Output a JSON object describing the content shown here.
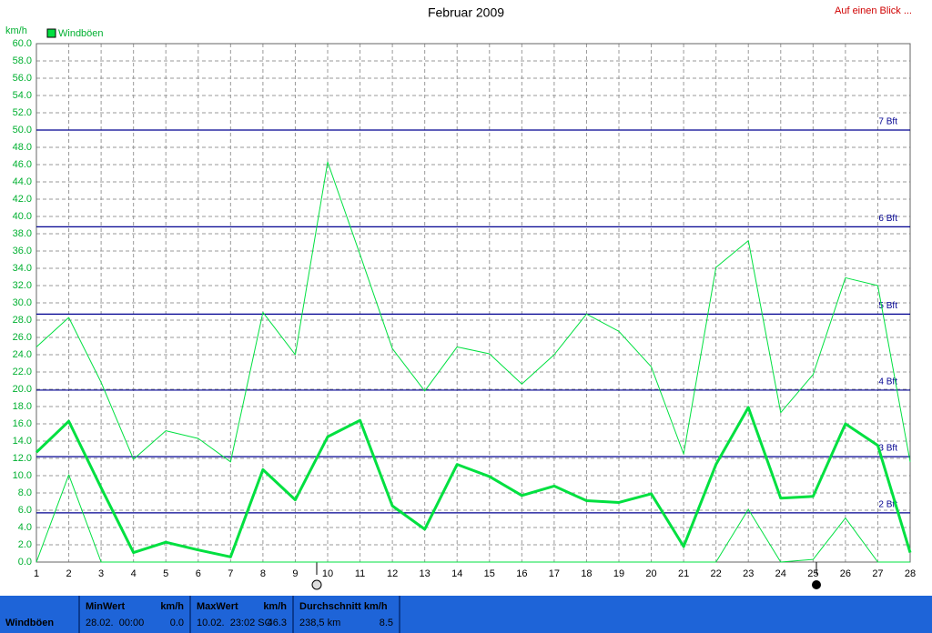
{
  "chart_data": {
    "type": "line",
    "title": "Februar 2009",
    "link": "Auf einen Blick ...",
    "y_unit": "km/h",
    "x": [
      1,
      2,
      3,
      4,
      5,
      6,
      7,
      8,
      9,
      10,
      11,
      12,
      13,
      14,
      15,
      16,
      17,
      18,
      19,
      20,
      21,
      22,
      23,
      24,
      25,
      26,
      27,
      28
    ],
    "xlim": [
      1,
      28
    ],
    "xticks": [
      1,
      2,
      3,
      4,
      5,
      6,
      7,
      8,
      9,
      10,
      11,
      12,
      13,
      14,
      15,
      16,
      17,
      18,
      19,
      20,
      21,
      22,
      23,
      24,
      25,
      26,
      27,
      28
    ],
    "ylim": [
      0,
      60
    ],
    "yticks": [
      {
        "value": 0,
        "label": "0.0"
      },
      {
        "value": 2,
        "label": "2.0"
      },
      {
        "value": 4,
        "label": "4.0"
      },
      {
        "value": 6,
        "label": "6.0"
      },
      {
        "value": 8,
        "label": "8.0"
      },
      {
        "value": 10,
        "label": "10.0"
      },
      {
        "value": 12,
        "label": "12.0"
      },
      {
        "value": 14,
        "label": "14.0"
      },
      {
        "value": 16,
        "label": "16.0"
      },
      {
        "value": 18,
        "label": "18.0"
      },
      {
        "value": 20,
        "label": "20.0"
      },
      {
        "value": 22,
        "label": "22.0"
      },
      {
        "value": 24,
        "label": "24.0"
      },
      {
        "value": 26,
        "label": "26.0"
      },
      {
        "value": 28,
        "label": "28.0"
      },
      {
        "value": 30,
        "label": "30.0"
      },
      {
        "value": 32,
        "label": "32.0"
      },
      {
        "value": 34,
        "label": "34.0"
      },
      {
        "value": 36,
        "label": "36.0"
      },
      {
        "value": 38,
        "label": "38.0"
      },
      {
        "value": 40,
        "label": "40.0"
      },
      {
        "value": 42,
        "label": "42.0"
      },
      {
        "value": 44,
        "label": "44.0"
      },
      {
        "value": 46,
        "label": "46.0"
      },
      {
        "value": 48,
        "label": "48.0"
      },
      {
        "value": 50,
        "label": "50.0"
      },
      {
        "value": 52,
        "label": "52.0"
      },
      {
        "value": 54,
        "label": "54.0"
      },
      {
        "value": 56,
        "label": "56.0"
      },
      {
        "value": 58,
        "label": "58.0"
      },
      {
        "value": 60,
        "label": "60.0"
      }
    ],
    "grid": true,
    "series": [
      {
        "name": "Windböen",
        "color": "#00e040",
        "width": 3,
        "values": [
          12.7,
          16.3,
          8.6,
          1.1,
          2.3,
          1.4,
          0.6,
          10.7,
          7.2,
          14.5,
          16.4,
          6.5,
          3.8,
          11.3,
          9.9,
          7.7,
          8.8,
          7.1,
          6.9,
          7.9,
          1.8,
          11.3,
          17.9,
          7.4,
          7.6,
          16.0,
          13.5,
          1.1
        ]
      },
      {
        "color": "#00e040",
        "width": 1,
        "values": [
          24.9,
          28.3,
          20.8,
          11.9,
          15.2,
          14.3,
          11.6,
          28.9,
          24.0,
          46.3,
          35.6,
          24.7,
          19.8,
          24.9,
          24.1,
          20.6,
          24.0,
          28.7,
          26.7,
          22.6,
          12.5,
          34.1,
          37.2,
          17.3,
          21.7,
          32.9,
          32.0,
          11.6
        ]
      },
      {
        "color": "#00e040",
        "width": 1,
        "values": [
          0,
          10.1,
          0,
          0,
          0,
          0,
          0,
          0,
          0,
          0,
          0,
          0,
          0,
          0,
          0,
          0,
          0,
          0,
          0,
          0,
          0,
          0,
          6.1,
          0,
          0.3,
          5.1,
          0,
          0
        ]
      }
    ],
    "bft_lines": [
      {
        "value": 50.0,
        "label": "7 Bft"
      },
      {
        "value": 38.8,
        "label": "6 Bft"
      },
      {
        "value": 28.7,
        "label": "5 Bft"
      },
      {
        "value": 19.9,
        "label": "4 Bft"
      },
      {
        "value": 12.2,
        "label": "3 Bft"
      },
      {
        "value": 5.7,
        "label": "2 Bft"
      }
    ],
    "bft_color": "#000090"
  },
  "summary": {
    "label": "Windböen",
    "cells": [
      {
        "title": "MinWert",
        "unit": "km/h",
        "when": "28.02.  00:00",
        "value": "0.0"
      },
      {
        "title": "MaxWert",
        "unit": "km/h",
        "when": "10.02.  23:02 SO",
        "value": "46.3"
      },
      {
        "title": "Durchschnitt km/h",
        "when": "238,5 km",
        "value": "8.5"
      }
    ]
  }
}
